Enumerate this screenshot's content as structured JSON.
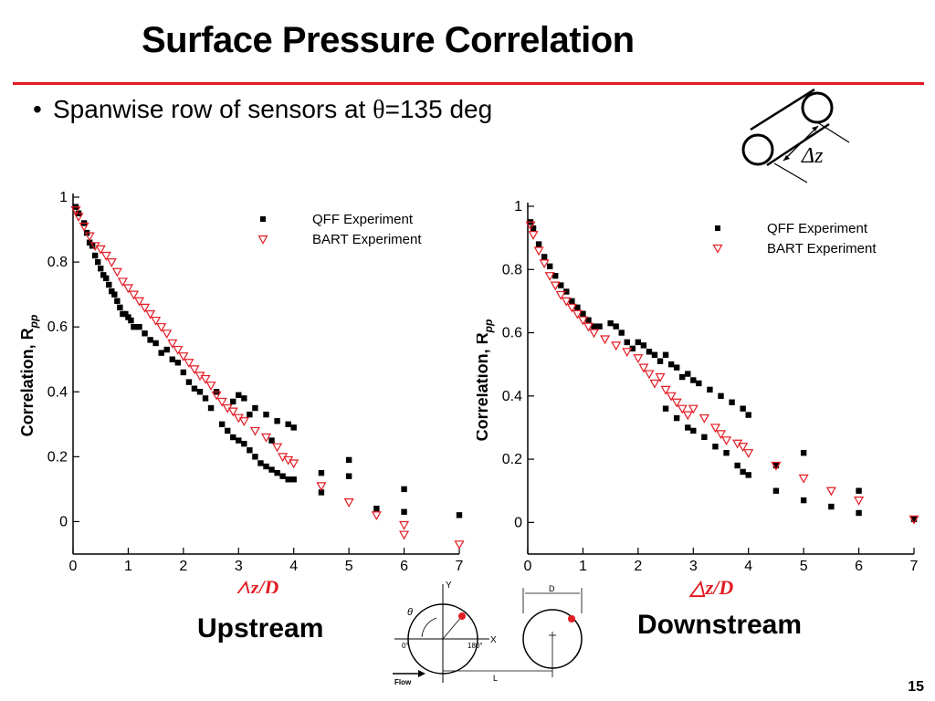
{
  "slide": {
    "title": "Surface Pressure Correlation",
    "bullet_prefix": "Spanwise row of sensors at ",
    "bullet_theta": "θ",
    "bullet_suffix": "=135 deg",
    "caption_left": "Upstream",
    "caption_right": "Downstream",
    "page_number": "15",
    "accent_color": "#e31b23"
  },
  "inset_icon": {
    "label": "Δz"
  },
  "geometry_diagram": {
    "left": {
      "axis_y": "Y",
      "axis_x": "X",
      "theta": "θ",
      "angle_0": "0°",
      "angle_180": "180°",
      "flow": "Flow"
    },
    "right": {
      "d": "D",
      "l": "L"
    }
  },
  "chart_data": [
    {
      "type": "scatter",
      "ylabel_main": "Correlation, R",
      "ylabel_sub": "pp",
      "xlabel": "△z/D",
      "xlim": [
        0,
        7
      ],
      "ylim": [
        -0.1,
        1
      ],
      "xticks": [
        "0",
        "1",
        "2",
        "3",
        "4",
        "5",
        "6",
        "7"
      ],
      "yticks": [
        {
          "v": 0,
          "t": "0"
        },
        {
          "v": 0.2,
          "t": "0.2"
        },
        {
          "v": 0.4,
          "t": "0.4"
        },
        {
          "v": 0.6,
          "t": "0.6"
        },
        {
          "v": 0.8,
          "t": "0.8"
        },
        {
          "v": 1,
          "t": "1"
        }
      ],
      "legend_position": "top-right",
      "series": [
        {
          "name": "QFF Experiment",
          "marker": "square",
          "color": "#000000",
          "points": [
            [
              0.05,
              0.97
            ],
            [
              0.1,
              0.95
            ],
            [
              0.2,
              0.92
            ],
            [
              0.25,
              0.89
            ],
            [
              0.3,
              0.86
            ],
            [
              0.35,
              0.85
            ],
            [
              0.4,
              0.82
            ],
            [
              0.45,
              0.8
            ],
            [
              0.5,
              0.78
            ],
            [
              0.55,
              0.76
            ],
            [
              0.6,
              0.75
            ],
            [
              0.65,
              0.73
            ],
            [
              0.7,
              0.71
            ],
            [
              0.75,
              0.7
            ],
            [
              0.8,
              0.68
            ],
            [
              0.85,
              0.66
            ],
            [
              0.9,
              0.64
            ],
            [
              0.95,
              0.64
            ],
            [
              1.0,
              0.63
            ],
            [
              1.05,
              0.62
            ],
            [
              1.1,
              0.6
            ],
            [
              1.2,
              0.6
            ],
            [
              1.3,
              0.58
            ],
            [
              1.4,
              0.56
            ],
            [
              1.5,
              0.55
            ],
            [
              1.6,
              0.52
            ],
            [
              1.7,
              0.53
            ],
            [
              1.8,
              0.5
            ],
            [
              1.9,
              0.49
            ],
            [
              2.0,
              0.46
            ],
            [
              2.1,
              0.43
            ],
            [
              2.2,
              0.41
            ],
            [
              2.3,
              0.4
            ],
            [
              2.4,
              0.38
            ],
            [
              2.5,
              0.35
            ],
            [
              2.6,
              0.4
            ],
            [
              2.7,
              0.3
            ],
            [
              2.8,
              0.28
            ],
            [
              2.9,
              0.26
            ],
            [
              3.0,
              0.25
            ],
            [
              3.1,
              0.24
            ],
            [
              3.2,
              0.22
            ],
            [
              3.3,
              0.2
            ],
            [
              3.4,
              0.18
            ],
            [
              3.5,
              0.17
            ],
            [
              3.6,
              0.16
            ],
            [
              3.7,
              0.15
            ],
            [
              3.8,
              0.14
            ],
            [
              3.9,
              0.13
            ],
            [
              4.0,
              0.13
            ],
            [
              2.9,
              0.37
            ],
            [
              3.0,
              0.39
            ],
            [
              3.1,
              0.38
            ],
            [
              3.3,
              0.35
            ],
            [
              3.5,
              0.33
            ],
            [
              3.7,
              0.31
            ],
            [
              3.9,
              0.3
            ],
            [
              4.0,
              0.29
            ],
            [
              3.2,
              0.33
            ],
            [
              3.6,
              0.25
            ],
            [
              4.5,
              0.15
            ],
            [
              4.5,
              0.09
            ],
            [
              5.0,
              0.19
            ],
            [
              5.0,
              0.14
            ],
            [
              5.5,
              0.04
            ],
            [
              6.0,
              0.1
            ],
            [
              6.0,
              0.03
            ],
            [
              7.0,
              0.02
            ]
          ]
        },
        {
          "name": "BART Experiment",
          "marker": "triangle-down",
          "color": "#e31b23",
          "points": [
            [
              0.05,
              0.96
            ],
            [
              0.1,
              0.94
            ],
            [
              0.2,
              0.91
            ],
            [
              0.3,
              0.88
            ],
            [
              0.4,
              0.85
            ],
            [
              0.5,
              0.84
            ],
            [
              0.6,
              0.82
            ],
            [
              0.7,
              0.8
            ],
            [
              0.8,
              0.77
            ],
            [
              0.9,
              0.74
            ],
            [
              1.0,
              0.72
            ],
            [
              1.1,
              0.7
            ],
            [
              1.2,
              0.68
            ],
            [
              1.3,
              0.66
            ],
            [
              1.4,
              0.64
            ],
            [
              1.5,
              0.62
            ],
            [
              1.6,
              0.6
            ],
            [
              1.7,
              0.58
            ],
            [
              1.8,
              0.55
            ],
            [
              1.9,
              0.53
            ],
            [
              2.0,
              0.51
            ],
            [
              2.1,
              0.49
            ],
            [
              2.2,
              0.47
            ],
            [
              2.3,
              0.45
            ],
            [
              2.4,
              0.44
            ],
            [
              2.5,
              0.42
            ],
            [
              2.6,
              0.39
            ],
            [
              2.7,
              0.37
            ],
            [
              2.8,
              0.35
            ],
            [
              2.9,
              0.34
            ],
            [
              3.0,
              0.32
            ],
            [
              3.1,
              0.31
            ],
            [
              3.3,
              0.28
            ],
            [
              3.5,
              0.26
            ],
            [
              3.7,
              0.23
            ],
            [
              3.8,
              0.2
            ],
            [
              3.9,
              0.19
            ],
            [
              4.0,
              0.18
            ],
            [
              4.5,
              0.11
            ],
            [
              5.0,
              0.06
            ],
            [
              5.5,
              0.02
            ],
            [
              6.0,
              -0.01
            ],
            [
              6.0,
              -0.04
            ],
            [
              7.0,
              -0.07
            ]
          ]
        }
      ]
    },
    {
      "type": "scatter",
      "ylabel_main": "Correlation, R",
      "ylabel_sub": "pp",
      "xlabel": "△z/D",
      "xlim": [
        0,
        7
      ],
      "ylim": [
        -0.1,
        1
      ],
      "xticks": [
        "0",
        "1",
        "2",
        "3",
        "4",
        "5",
        "6",
        "7"
      ],
      "yticks": [
        {
          "v": 0,
          "t": "0"
        },
        {
          "v": 0.2,
          "t": "0.2"
        },
        {
          "v": 0.4,
          "t": "0.4"
        },
        {
          "v": 0.6,
          "t": "0.6"
        },
        {
          "v": 0.8,
          "t": "0.8"
        },
        {
          "v": 1,
          "t": "1"
        }
      ],
      "legend_position": "top-right",
      "series": [
        {
          "name": "QFF Experiment",
          "marker": "square",
          "color": "#000000",
          "points": [
            [
              0.05,
              0.95
            ],
            [
              0.1,
              0.93
            ],
            [
              0.2,
              0.88
            ],
            [
              0.3,
              0.84
            ],
            [
              0.4,
              0.81
            ],
            [
              0.5,
              0.78
            ],
            [
              0.6,
              0.75
            ],
            [
              0.7,
              0.73
            ],
            [
              0.8,
              0.7
            ],
            [
              0.9,
              0.68
            ],
            [
              1.0,
              0.66
            ],
            [
              1.1,
              0.64
            ],
            [
              1.2,
              0.62
            ],
            [
              1.3,
              0.62
            ],
            [
              1.5,
              0.63
            ],
            [
              1.6,
              0.62
            ],
            [
              1.7,
              0.6
            ],
            [
              1.8,
              0.57
            ],
            [
              1.9,
              0.55
            ],
            [
              2.0,
              0.57
            ],
            [
              2.1,
              0.56
            ],
            [
              2.2,
              0.54
            ],
            [
              2.3,
              0.53
            ],
            [
              2.4,
              0.51
            ],
            [
              2.5,
              0.53
            ],
            [
              2.6,
              0.5
            ],
            [
              2.7,
              0.49
            ],
            [
              2.8,
              0.46
            ],
            [
              2.9,
              0.47
            ],
            [
              3.0,
              0.45
            ],
            [
              3.1,
              0.44
            ],
            [
              3.3,
              0.42
            ],
            [
              3.5,
              0.4
            ],
            [
              3.7,
              0.38
            ],
            [
              3.9,
              0.36
            ],
            [
              4.0,
              0.34
            ],
            [
              2.5,
              0.36
            ],
            [
              2.7,
              0.33
            ],
            [
              2.9,
              0.3
            ],
            [
              3.0,
              0.29
            ],
            [
              3.2,
              0.27
            ],
            [
              3.4,
              0.24
            ],
            [
              3.6,
              0.22
            ],
            [
              3.8,
              0.18
            ],
            [
              3.9,
              0.16
            ],
            [
              4.0,
              0.15
            ],
            [
              4.5,
              0.18
            ],
            [
              4.5,
              0.1
            ],
            [
              5.0,
              0.22
            ],
            [
              5.0,
              0.07
            ],
            [
              5.5,
              0.05
            ],
            [
              6.0,
              0.1
            ],
            [
              6.0,
              0.03
            ],
            [
              7.0,
              0.01
            ]
          ]
        },
        {
          "name": "BART Experiment",
          "marker": "triangle-down",
          "color": "#e31b23",
          "points": [
            [
              0.05,
              0.94
            ],
            [
              0.1,
              0.91
            ],
            [
              0.2,
              0.86
            ],
            [
              0.3,
              0.82
            ],
            [
              0.4,
              0.78
            ],
            [
              0.5,
              0.75
            ],
            [
              0.6,
              0.72
            ],
            [
              0.7,
              0.7
            ],
            [
              0.8,
              0.68
            ],
            [
              0.9,
              0.66
            ],
            [
              1.0,
              0.64
            ],
            [
              1.1,
              0.62
            ],
            [
              1.2,
              0.6
            ],
            [
              1.4,
              0.58
            ],
            [
              1.6,
              0.56
            ],
            [
              1.8,
              0.54
            ],
            [
              2.0,
              0.52
            ],
            [
              2.1,
              0.49
            ],
            [
              2.2,
              0.47
            ],
            [
              2.3,
              0.44
            ],
            [
              2.4,
              0.46
            ],
            [
              2.5,
              0.42
            ],
            [
              2.6,
              0.4
            ],
            [
              2.7,
              0.38
            ],
            [
              2.8,
              0.36
            ],
            [
              2.9,
              0.34
            ],
            [
              3.0,
              0.36
            ],
            [
              3.2,
              0.33
            ],
            [
              3.4,
              0.3
            ],
            [
              3.5,
              0.28
            ],
            [
              3.6,
              0.26
            ],
            [
              3.8,
              0.25
            ],
            [
              3.9,
              0.24
            ],
            [
              4.0,
              0.22
            ],
            [
              4.5,
              0.18
            ],
            [
              5.0,
              0.14
            ],
            [
              5.5,
              0.1
            ],
            [
              6.0,
              0.07
            ],
            [
              7.0,
              0.01
            ]
          ]
        }
      ]
    }
  ]
}
